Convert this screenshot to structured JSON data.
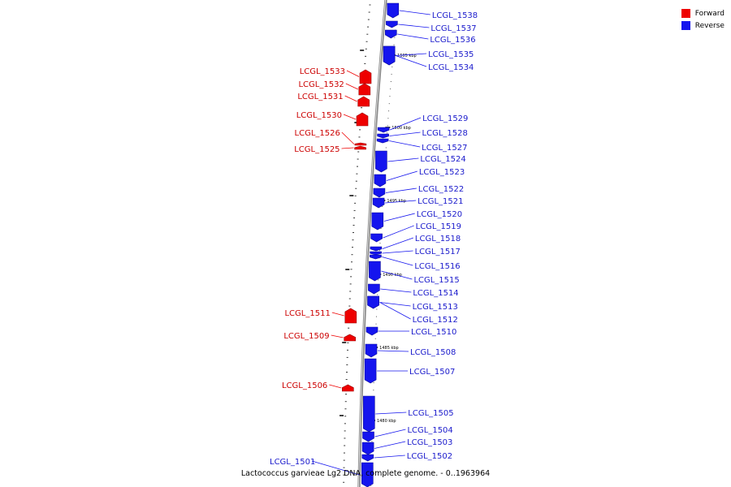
{
  "legend": {
    "forward_label": "Forward",
    "reverse_label": "Reverse",
    "forward_color": "#ee0000",
    "reverse_color": "#1515ee"
  },
  "caption": "Lactococcus garvieae Lg2 DNA, complete genome. - 0..1963964",
  "scale_marks": [
    "1505 kbp",
    "1500 kbp",
    "1495 kbp",
    "1490 kbp",
    "1485 kbp",
    "1480 kbp"
  ],
  "genes": [
    {
      "name": "LCGL_1538",
      "strand": "reverse"
    },
    {
      "name": "LCGL_1537",
      "strand": "reverse"
    },
    {
      "name": "LCGL_1536",
      "strand": "reverse"
    },
    {
      "name": "LCGL_1535",
      "strand": "reverse"
    },
    {
      "name": "LCGL_1534",
      "strand": "reverse"
    },
    {
      "name": "LCGL_1533",
      "strand": "forward"
    },
    {
      "name": "LCGL_1532",
      "strand": "forward"
    },
    {
      "name": "LCGL_1531",
      "strand": "forward"
    },
    {
      "name": "LCGL_1530",
      "strand": "forward"
    },
    {
      "name": "LCGL_1529",
      "strand": "reverse"
    },
    {
      "name": "LCGL_1528",
      "strand": "reverse"
    },
    {
      "name": "LCGL_1527",
      "strand": "reverse"
    },
    {
      "name": "LCGL_1526",
      "strand": "forward"
    },
    {
      "name": "LCGL_1525",
      "strand": "forward"
    },
    {
      "name": "LCGL_1524",
      "strand": "reverse"
    },
    {
      "name": "LCGL_1523",
      "strand": "reverse"
    },
    {
      "name": "LCGL_1522",
      "strand": "reverse"
    },
    {
      "name": "LCGL_1521",
      "strand": "reverse"
    },
    {
      "name": "LCGL_1520",
      "strand": "reverse"
    },
    {
      "name": "LCGL_1519",
      "strand": "reverse"
    },
    {
      "name": "LCGL_1518",
      "strand": "reverse"
    },
    {
      "name": "LCGL_1517",
      "strand": "reverse"
    },
    {
      "name": "LCGL_1516",
      "strand": "reverse"
    },
    {
      "name": "LCGL_1515",
      "strand": "reverse"
    },
    {
      "name": "LCGL_1514",
      "strand": "reverse"
    },
    {
      "name": "LCGL_1513",
      "strand": "reverse"
    },
    {
      "name": "LCGL_1512",
      "strand": "reverse"
    },
    {
      "name": "LCGL_1511",
      "strand": "forward"
    },
    {
      "name": "LCGL_1510",
      "strand": "reverse"
    },
    {
      "name": "LCGL_1509",
      "strand": "forward"
    },
    {
      "name": "LCGL_1508",
      "strand": "reverse"
    },
    {
      "name": "LCGL_1507",
      "strand": "reverse"
    },
    {
      "name": "LCGL_1506",
      "strand": "forward"
    },
    {
      "name": "LCGL_1505",
      "strand": "reverse"
    },
    {
      "name": "LCGL_1504",
      "strand": "reverse"
    },
    {
      "name": "LCGL_1503",
      "strand": "reverse"
    },
    {
      "name": "LCGL_1502",
      "strand": "reverse"
    },
    {
      "name": "LCGL_1501",
      "strand": "reverse"
    }
  ]
}
